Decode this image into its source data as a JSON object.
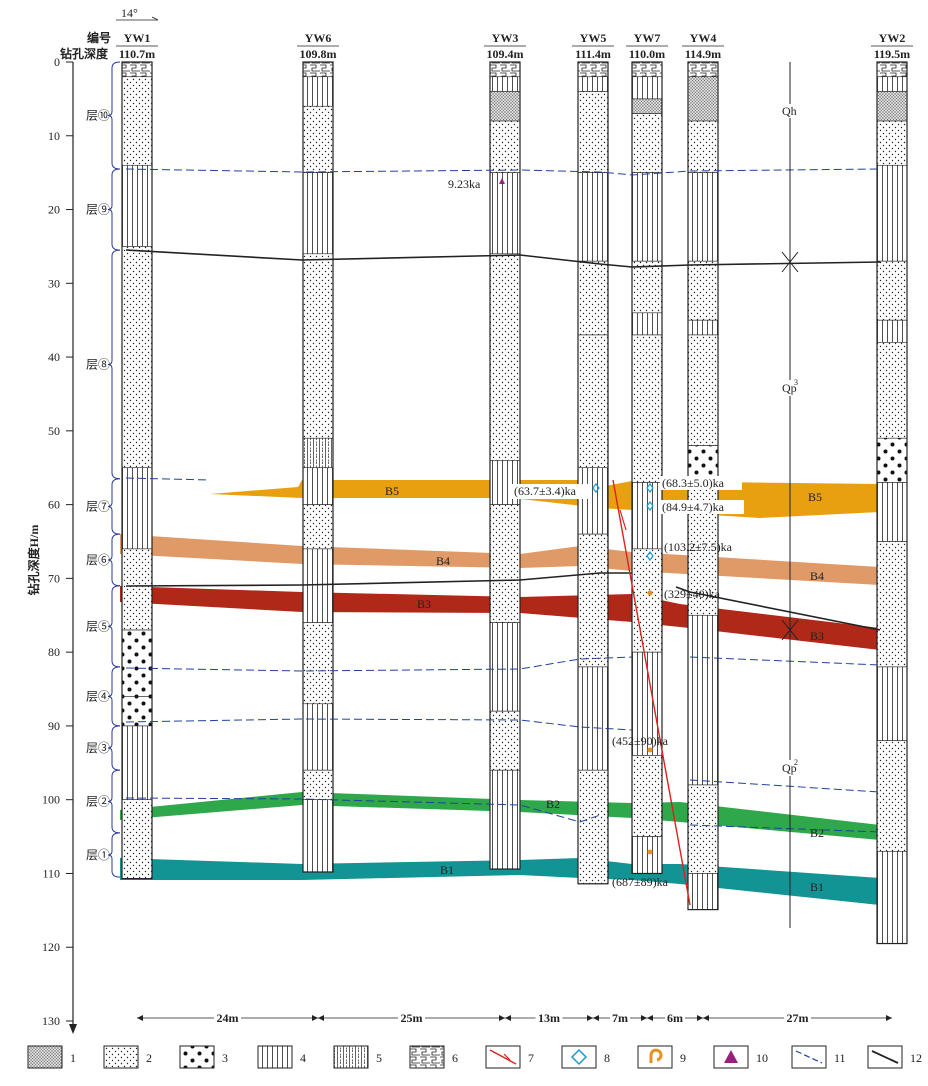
{
  "header": {
    "orientation": "14°",
    "label_id": "编号",
    "label_depth": "钻孔深度",
    "y_axis_label": "钻孔深度H/m"
  },
  "y_ticks": [
    "0",
    "10",
    "20",
    "30",
    "40",
    "50",
    "60",
    "70",
    "80",
    "90",
    "100",
    "110",
    "120",
    "130"
  ],
  "boreholes": [
    {
      "id": "YW1",
      "depth": "110.7m"
    },
    {
      "id": "YW6",
      "depth": "109.8m"
    },
    {
      "id": "YW3",
      "depth": "109.4m"
    },
    {
      "id": "YW5",
      "depth": "111.4m"
    },
    {
      "id": "YW7",
      "depth": "110.0m"
    },
    {
      "id": "YW4",
      "depth": "114.9m"
    },
    {
      "id": "YW2",
      "depth": "119.5m"
    }
  ],
  "layers": [
    "层⑩",
    "层⑨",
    "层⑧",
    "层⑦",
    "层⑥",
    "层⑤",
    "层④",
    "层③",
    "层②",
    "层①"
  ],
  "beds": [
    "B5",
    "B4",
    "B3",
    "B3",
    "B2",
    "B2",
    "B1",
    "B1",
    "B5",
    "B4"
  ],
  "ages": [
    "9.23ka",
    "(63.7±3.4)ka",
    "(68.3±5.0)ka",
    "(84.9±4.7)ka",
    "(103.2±7.5)ka",
    "(329±40)ka",
    "(452±90)ka",
    "(687±89)ka"
  ],
  "strata_labels": {
    "qh": "Qh",
    "qp3": "Qp",
    "qp3_sup": "3",
    "qp2": "Qp",
    "qp2_sup": "2"
  },
  "distances": [
    "24m",
    "25m",
    "13m",
    "7m",
    "6m",
    "27m"
  ],
  "legend": [
    "1",
    "2",
    "3",
    "4",
    "5",
    "6",
    "7",
    "8",
    "9",
    "10",
    "11",
    "12"
  ],
  "colors": {
    "B5": "#e8a010",
    "B4": "#e09a68",
    "B3": "#b02818",
    "B2": "#2ea84a",
    "B1": "#139494",
    "age_marker": "#1a9ad0",
    "fault": "#e02020",
    "dashed": "#2040a0"
  }
}
